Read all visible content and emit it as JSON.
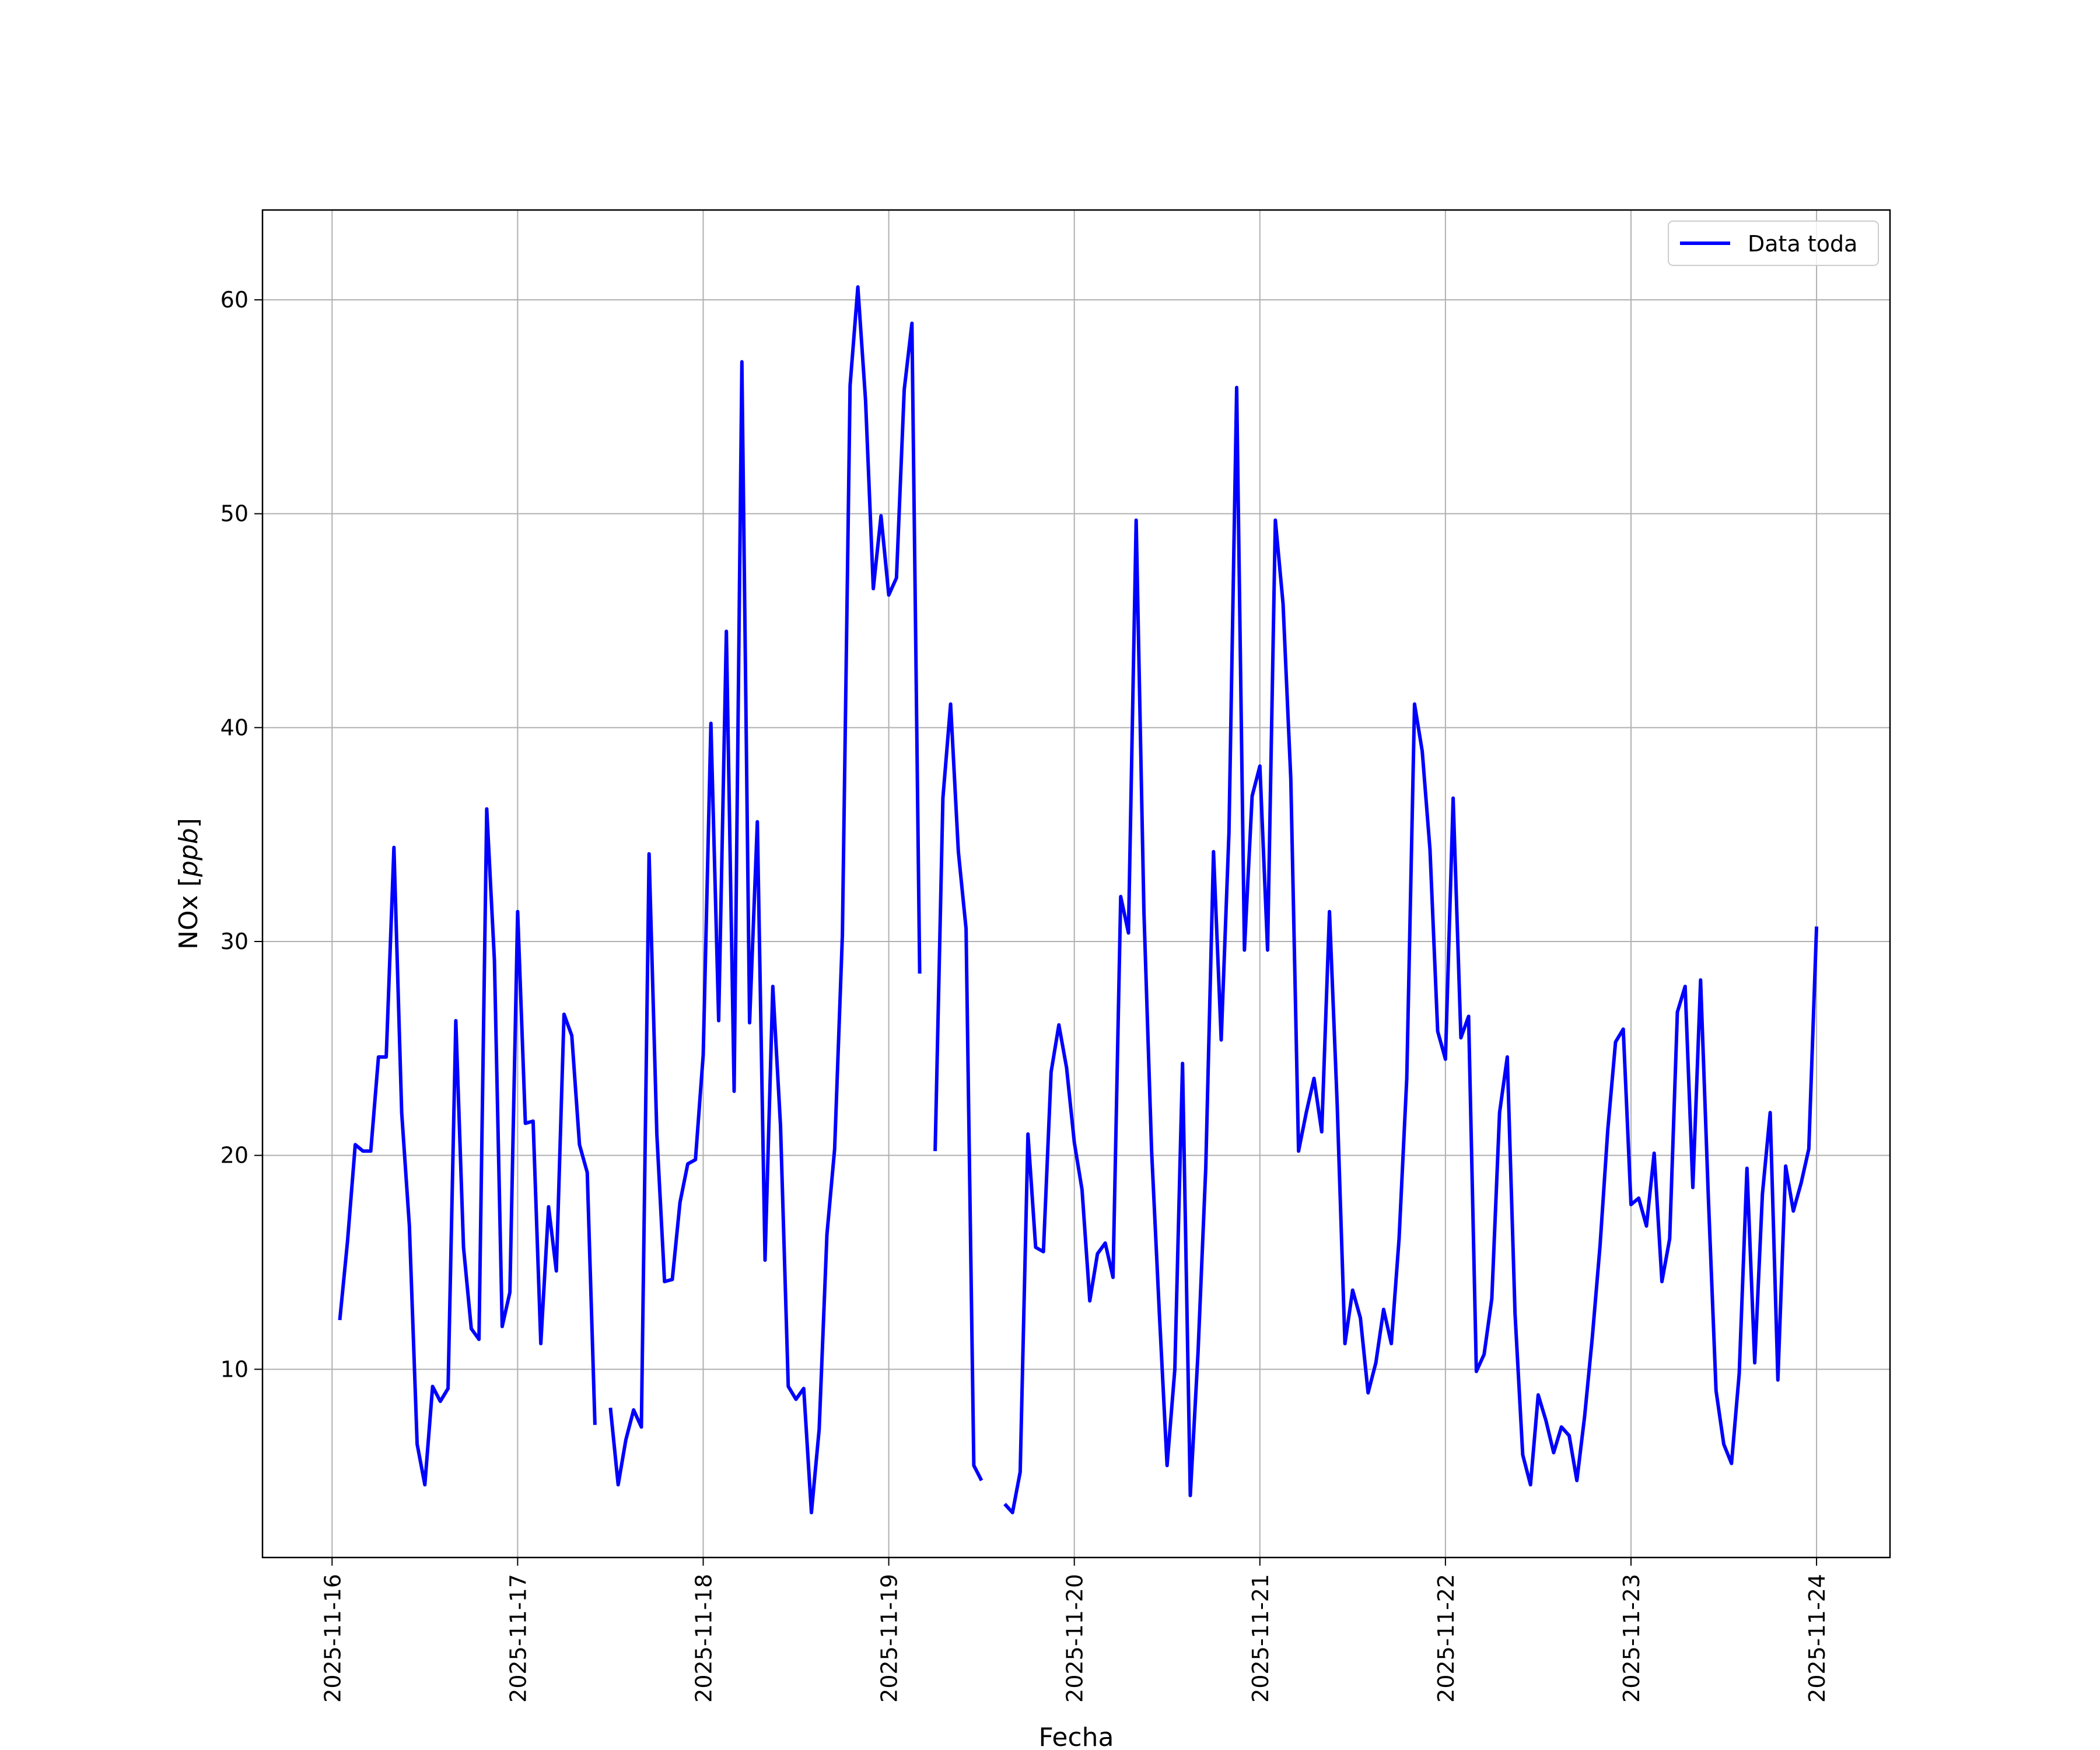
{
  "chart_data": {
    "type": "line",
    "title": "",
    "xlabel": "Fecha",
    "ylabel_main": "NOx [",
    "ylabel_unit": "ppb",
    "ylabel_close": "]",
    "x_ticks": [
      "2025-11-16",
      "2025-11-17",
      "2025-11-18",
      "2025-11-19",
      "2025-11-20",
      "2025-11-21",
      "2025-11-22",
      "2025-11-23",
      "2025-11-24"
    ],
    "y_ticks": [
      "10",
      "20",
      "30",
      "40",
      "50",
      "60"
    ],
    "xlim": [
      "2025-11-15 15:00",
      "2025-11-24 09:30"
    ],
    "ylim": [
      1.2,
      64.2
    ],
    "grid": true,
    "legend_position": "top-right",
    "series": [
      {
        "name": "Data toda",
        "color": "#0000ff",
        "segments": [
          [
            [
              "2025-11-16 01:00",
              12.3
            ],
            [
              "2025-11-16 02:00",
              16.0
            ],
            [
              "2025-11-16 03:00",
              20.5
            ],
            [
              "2025-11-16 04:00",
              20.2
            ],
            [
              "2025-11-16 05:00",
              20.2
            ],
            [
              "2025-11-16 06:00",
              24.6
            ],
            [
              "2025-11-16 07:00",
              24.6
            ],
            [
              "2025-11-16 08:00",
              34.4
            ],
            [
              "2025-11-16 09:00",
              22.0
            ],
            [
              "2025-11-16 10:00",
              16.7
            ],
            [
              "2025-11-16 11:00",
              6.5
            ],
            [
              "2025-11-16 12:00",
              4.6
            ],
            [
              "2025-11-16 13:00",
              9.2
            ],
            [
              "2025-11-16 14:00",
              8.5
            ],
            [
              "2025-11-16 15:00",
              9.1
            ],
            [
              "2025-11-16 16:00",
              26.3
            ],
            [
              "2025-11-16 17:00",
              15.7
            ],
            [
              "2025-11-16 18:00",
              11.9
            ],
            [
              "2025-11-16 19:00",
              11.4
            ],
            [
              "2025-11-16 20:00",
              36.2
            ],
            [
              "2025-11-16 21:00",
              29.1
            ],
            [
              "2025-11-16 22:00",
              12.0
            ],
            [
              "2025-11-16 23:00",
              13.6
            ],
            [
              "2025-11-17 00:00",
              31.4
            ],
            [
              "2025-11-17 01:00",
              21.5
            ],
            [
              "2025-11-17 02:00",
              21.6
            ],
            [
              "2025-11-17 03:00",
              11.2
            ],
            [
              "2025-11-17 04:00",
              17.6
            ],
            [
              "2025-11-17 05:00",
              14.6
            ],
            [
              "2025-11-17 06:00",
              26.6
            ],
            [
              "2025-11-17 07:00",
              25.6
            ],
            [
              "2025-11-17 08:00",
              20.5
            ],
            [
              "2025-11-17 09:00",
              19.2
            ],
            [
              "2025-11-17 10:00",
              7.4
            ]
          ],
          [
            [
              "2025-11-17 12:00",
              8.2
            ],
            [
              "2025-11-17 13:00",
              4.6
            ],
            [
              "2025-11-17 14:00",
              6.7
            ],
            [
              "2025-11-17 15:00",
              8.1
            ],
            [
              "2025-11-17 16:00",
              7.3
            ],
            [
              "2025-11-17 17:00",
              34.1
            ],
            [
              "2025-11-17 18:00",
              21.0
            ],
            [
              "2025-11-17 19:00",
              14.1
            ],
            [
              "2025-11-17 20:00",
              14.2
            ],
            [
              "2025-11-17 21:00",
              17.8
            ],
            [
              "2025-11-17 22:00",
              19.6
            ],
            [
              "2025-11-17 23:00",
              19.8
            ],
            [
              "2025-11-18 00:00",
              24.7
            ],
            [
              "2025-11-18 01:00",
              40.2
            ],
            [
              "2025-11-18 02:00",
              26.3
            ],
            [
              "2025-11-18 03:00",
              44.5
            ],
            [
              "2025-11-18 04:00",
              23.0
            ],
            [
              "2025-11-18 05:00",
              57.1
            ],
            [
              "2025-11-18 06:00",
              26.2
            ],
            [
              "2025-11-18 07:00",
              35.6
            ],
            [
              "2025-11-18 08:00",
              15.1
            ],
            [
              "2025-11-18 09:00",
              27.9
            ],
            [
              "2025-11-18 10:00",
              21.4
            ],
            [
              "2025-11-18 11:00",
              9.2
            ],
            [
              "2025-11-18 12:00",
              8.6
            ],
            [
              "2025-11-18 13:00",
              9.1
            ],
            [
              "2025-11-18 14:00",
              3.3
            ],
            [
              "2025-11-18 15:00",
              7.2
            ],
            [
              "2025-11-18 16:00",
              16.3
            ],
            [
              "2025-11-18 17:00",
              20.3
            ],
            [
              "2025-11-18 18:00",
              30.3
            ],
            [
              "2025-11-18 19:00",
              56.0
            ],
            [
              "2025-11-18 20:00",
              60.6
            ],
            [
              "2025-11-18 21:00",
              55.3
            ],
            [
              "2025-11-18 22:00",
              46.5
            ],
            [
              "2025-11-18 23:00",
              49.9
            ],
            [
              "2025-11-19 00:00",
              46.2
            ],
            [
              "2025-11-19 01:00",
              47.0
            ],
            [
              "2025-11-19 02:00",
              55.8
            ],
            [
              "2025-11-19 03:00",
              58.9
            ],
            [
              "2025-11-19 04:00",
              28.5
            ]
          ],
          [
            [
              "2025-11-19 06:00",
              20.2
            ],
            [
              "2025-11-19 07:00",
              36.7
            ],
            [
              "2025-11-19 08:00",
              41.1
            ],
            [
              "2025-11-19 09:00",
              34.2
            ],
            [
              "2025-11-19 10:00",
              30.6
            ],
            [
              "2025-11-19 11:00",
              5.5
            ],
            [
              "2025-11-19 12:00",
              4.8
            ]
          ],
          [
            [
              "2025-11-19 15:00",
              3.7
            ],
            [
              "2025-11-19 16:00",
              3.3
            ],
            [
              "2025-11-19 17:00",
              5.2
            ],
            [
              "2025-11-19 18:00",
              21.0
            ],
            [
              "2025-11-19 19:00",
              15.7
            ],
            [
              "2025-11-19 20:00",
              15.5
            ],
            [
              "2025-11-19 21:00",
              23.9
            ],
            [
              "2025-11-19 22:00",
              26.1
            ],
            [
              "2025-11-19 23:00",
              24.1
            ],
            [
              "2025-11-20 00:00",
              20.6
            ],
            [
              "2025-11-20 01:00",
              18.4
            ],
            [
              "2025-11-20 02:00",
              13.2
            ],
            [
              "2025-11-20 03:00",
              15.4
            ],
            [
              "2025-11-20 04:00",
              15.9
            ],
            [
              "2025-11-20 05:00",
              14.3
            ],
            [
              "2025-11-20 06:00",
              32.1
            ],
            [
              "2025-11-20 07:00",
              30.4
            ],
            [
              "2025-11-20 08:00",
              49.7
            ],
            [
              "2025-11-20 09:00",
              31.4
            ],
            [
              "2025-11-20 10:00",
              20.2
            ],
            [
              "2025-11-20 11:00",
              12.6
            ],
            [
              "2025-11-20 12:00",
              5.5
            ],
            [
              "2025-11-20 13:00",
              10.0
            ],
            [
              "2025-11-20 14:00",
              24.3
            ],
            [
              "2025-11-20 15:00",
              4.1
            ],
            [
              "2025-11-20 16:00",
              10.8
            ],
            [
              "2025-11-20 17:00",
              19.4
            ],
            [
              "2025-11-20 18:00",
              34.2
            ],
            [
              "2025-11-20 19:00",
              25.4
            ],
            [
              "2025-11-20 20:00",
              35.1
            ],
            [
              "2025-11-20 21:00",
              55.9
            ],
            [
              "2025-11-20 22:00",
              29.6
            ],
            [
              "2025-11-20 23:00",
              36.8
            ],
            [
              "2025-11-21 00:00",
              38.2
            ],
            [
              "2025-11-21 01:00",
              29.6
            ],
            [
              "2025-11-21 02:00",
              49.7
            ],
            [
              "2025-11-21 03:00",
              45.8
            ],
            [
              "2025-11-21 04:00",
              37.6
            ],
            [
              "2025-11-21 05:00",
              20.2
            ],
            [
              "2025-11-21 06:00",
              22.0
            ],
            [
              "2025-11-21 07:00",
              23.6
            ],
            [
              "2025-11-21 08:00",
              21.1
            ],
            [
              "2025-11-21 09:00",
              31.4
            ],
            [
              "2025-11-21 10:00",
              22.4
            ],
            [
              "2025-11-21 11:00",
              11.2
            ],
            [
              "2025-11-21 12:00",
              13.7
            ],
            [
              "2025-11-21 13:00",
              12.4
            ],
            [
              "2025-11-21 14:00",
              8.9
            ],
            [
              "2025-11-21 15:00",
              10.3
            ],
            [
              "2025-11-21 16:00",
              12.8
            ],
            [
              "2025-11-21 17:00",
              11.2
            ],
            [
              "2025-11-21 18:00",
              16.1
            ],
            [
              "2025-11-21 19:00",
              23.6
            ],
            [
              "2025-11-21 20:00",
              41.1
            ],
            [
              "2025-11-21 21:00",
              38.9
            ],
            [
              "2025-11-21 22:00",
              34.3
            ],
            [
              "2025-11-21 23:00",
              25.8
            ],
            [
              "2025-11-22 00:00",
              24.5
            ],
            [
              "2025-11-22 01:00",
              36.7
            ],
            [
              "2025-11-22 02:00",
              25.5
            ],
            [
              "2025-11-22 03:00",
              26.5
            ],
            [
              "2025-11-22 04:00",
              9.9
            ],
            [
              "2025-11-22 05:00",
              10.7
            ],
            [
              "2025-11-22 06:00",
              13.3
            ],
            [
              "2025-11-22 07:00",
              22.0
            ],
            [
              "2025-11-22 08:00",
              24.6
            ],
            [
              "2025-11-22 09:00",
              12.6
            ],
            [
              "2025-11-22 10:00",
              6.0
            ],
            [
              "2025-11-22 11:00",
              4.6
            ],
            [
              "2025-11-22 12:00",
              8.8
            ],
            [
              "2025-11-22 13:00",
              7.6
            ],
            [
              "2025-11-22 14:00",
              6.1
            ],
            [
              "2025-11-22 15:00",
              7.3
            ],
            [
              "2025-11-22 16:00",
              6.9
            ],
            [
              "2025-11-22 17:00",
              4.8
            ],
            [
              "2025-11-22 18:00",
              7.8
            ],
            [
              "2025-11-22 19:00",
              11.5
            ],
            [
              "2025-11-22 20:00",
              15.8
            ],
            [
              "2025-11-22 21:00",
              21.2
            ],
            [
              "2025-11-22 22:00",
              25.3
            ],
            [
              "2025-11-22 23:00",
              25.9
            ],
            [
              "2025-11-23 00:00",
              17.7
            ],
            [
              "2025-11-23 01:00",
              18.0
            ],
            [
              "2025-11-23 02:00",
              16.7
            ],
            [
              "2025-11-23 03:00",
              20.1
            ],
            [
              "2025-11-23 04:00",
              14.1
            ],
            [
              "2025-11-23 05:00",
              16.1
            ],
            [
              "2025-11-23 06:00",
              26.7
            ],
            [
              "2025-11-23 07:00",
              27.9
            ],
            [
              "2025-11-23 08:00",
              18.5
            ],
            [
              "2025-11-23 09:00",
              28.2
            ],
            [
              "2025-11-23 10:00",
              18.1
            ],
            [
              "2025-11-23 11:00",
              9.0
            ],
            [
              "2025-11-23 12:00",
              6.5
            ],
            [
              "2025-11-23 13:00",
              5.6
            ],
            [
              "2025-11-23 14:00",
              9.8
            ],
            [
              "2025-11-23 15:00",
              19.4
            ],
            [
              "2025-11-23 16:00",
              10.3
            ],
            [
              "2025-11-23 17:00",
              18.2
            ],
            [
              "2025-11-23 18:00",
              22.0
            ],
            [
              "2025-11-23 19:00",
              9.5
            ],
            [
              "2025-11-23 20:00",
              19.5
            ],
            [
              "2025-11-23 21:00",
              17.4
            ],
            [
              "2025-11-23 22:00",
              18.7
            ],
            [
              "2025-11-23 23:00",
              20.3
            ],
            [
              "2025-11-24 00:00",
              30.7
            ]
          ]
        ]
      }
    ]
  }
}
